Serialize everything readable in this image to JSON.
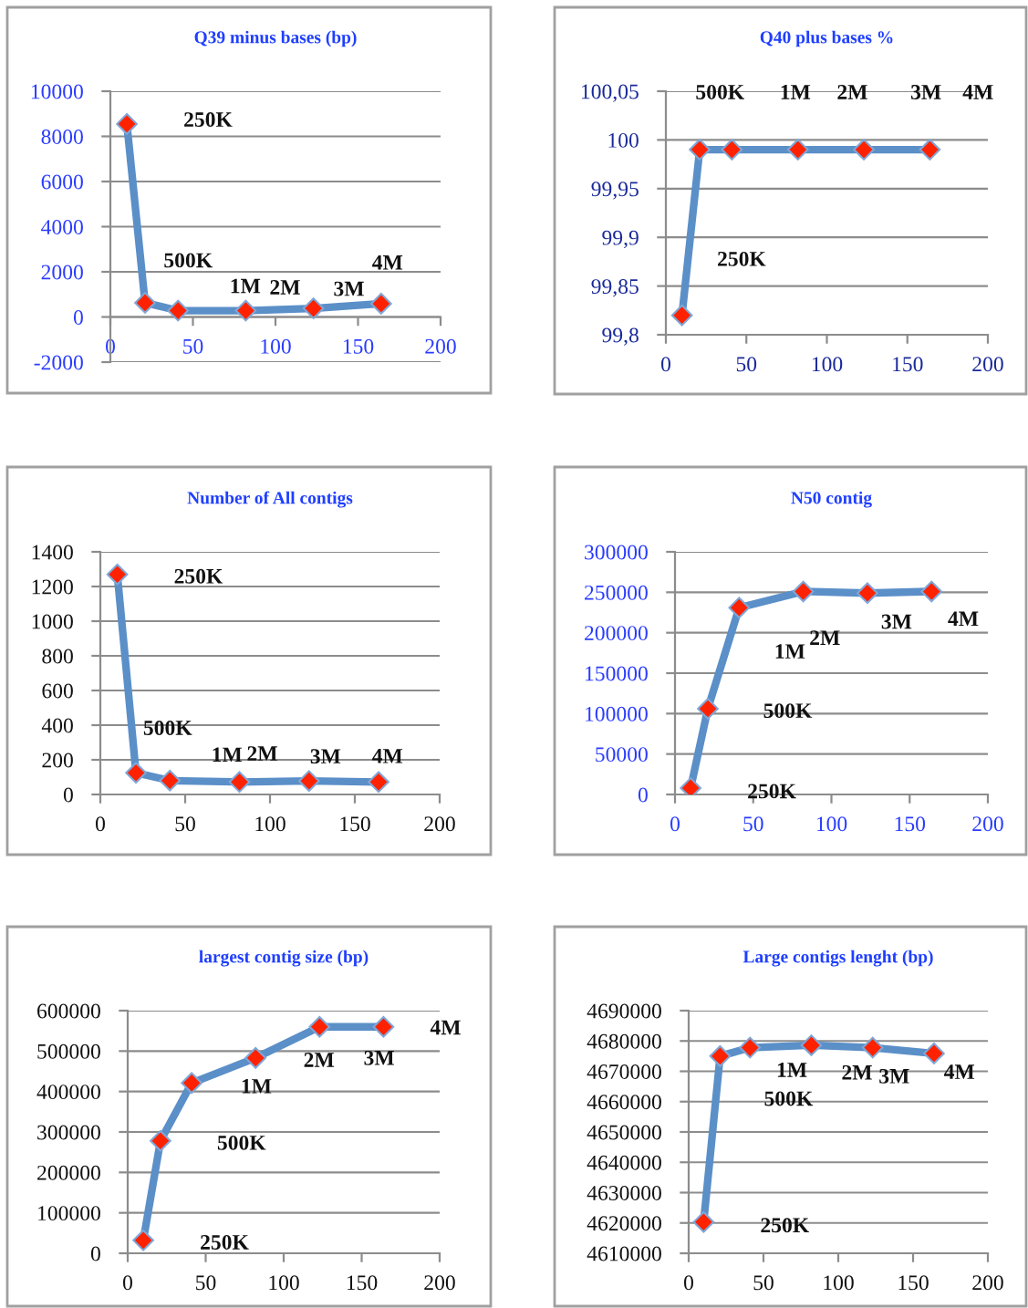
{
  "chart_data": [
    {
      "type": "line",
      "title": "Q39 minus bases (bp)",
      "x": [
        10,
        21,
        41,
        82,
        123,
        164
      ],
      "series": [
        {
          "color": "#5b8fc8",
          "values": [
            8550,
            630,
            280,
            280,
            380,
            590
          ]
        }
      ],
      "xlim": [
        0,
        200
      ],
      "xticks": [
        0,
        50,
        100,
        150,
        200
      ],
      "ylim": [
        -2000,
        10000
      ],
      "yticks": [
        -2000,
        0,
        2000,
        4000,
        6000,
        8000,
        10000
      ],
      "grid": "y",
      "marker": "diamond",
      "line_style": "solid",
      "annotations": [
        {
          "text": "250K",
          "x": 10,
          "y": 8550
        },
        {
          "text": "500K",
          "x": 21,
          "y": 630
        },
        {
          "text": "1M",
          "x": 41,
          "y": 280
        },
        {
          "text": "2M",
          "x": 82,
          "y": 280
        },
        {
          "text": "3M",
          "x": 123,
          "y": 380
        },
        {
          "text": "4M",
          "x": 164,
          "y": 590
        }
      ]
    },
    {
      "type": "line",
      "title": "Q40 plus bases %",
      "x": [
        10,
        21,
        41,
        82,
        123,
        164
      ],
      "series": [
        {
          "color": "#5b8fc8",
          "values": [
            99.82,
            99.99,
            99.99,
            99.99,
            99.99,
            99.99
          ]
        }
      ],
      "xlim": [
        0,
        200
      ],
      "xticks": [
        0,
        50,
        100,
        150,
        200
      ],
      "ylim": [
        99.8,
        100.05
      ],
      "yticks": [
        {
          "value": 99.8,
          "label": "99,8"
        },
        {
          "value": 99.85,
          "label": "99,85"
        },
        {
          "value": 99.9,
          "label": "99,9"
        },
        {
          "value": 99.95,
          "label": "99,95"
        },
        100,
        {
          "value": 100.05,
          "label": "100,05"
        }
      ],
      "grid": "y",
      "marker": "diamond",
      "line_style": "solid",
      "annotations": [
        "250K",
        "500K",
        "1M",
        "2M",
        "3M",
        "4M"
      ]
    },
    {
      "type": "line",
      "title": "Number of All contigs",
      "x": [
        10,
        21,
        41,
        82,
        123,
        164
      ],
      "series": [
        {
          "color": "#5b8fc8",
          "values": [
            1270,
            125,
            80,
            72,
            78,
            72
          ]
        }
      ],
      "xlim": [
        0,
        200
      ],
      "xticks": [
        0,
        50,
        100,
        150,
        200
      ],
      "ylim": [
        0,
        1400
      ],
      "yticks": [
        0,
        200,
        400,
        600,
        800,
        1000,
        1200,
        1400
      ],
      "grid": "y",
      "marker": "diamond",
      "line_style": "solid",
      "annotations": [
        {
          "text": "250K",
          "x": 10,
          "y": 1270
        },
        {
          "text": "500K",
          "x": 21,
          "y": 125
        },
        {
          "text": "1M",
          "x": 41,
          "y": 80
        },
        {
          "text": "2M",
          "x": 82,
          "y": 72
        },
        {
          "text": "3M",
          "x": 123,
          "y": 78
        },
        {
          "text": "4M",
          "x": 164,
          "y": 72
        }
      ]
    },
    {
      "type": "line",
      "title": "N50 contig",
      "x": [
        10,
        21,
        41,
        82,
        123,
        164
      ],
      "series": [
        {
          "color": "#5b8fc8",
          "values": [
            8000,
            106000,
            231000,
            251000,
            249000,
            251000
          ]
        }
      ],
      "xlim": [
        0,
        200
      ],
      "xticks": [
        0,
        50,
        100,
        150,
        200
      ],
      "ylim": [
        0,
        300000
      ],
      "yticks": [
        0,
        50000,
        100000,
        150000,
        200000,
        250000,
        300000
      ],
      "grid": "y",
      "marker": "diamond",
      "line_style": "solid",
      "annotations": [
        {
          "text": "250K",
          "x": 10,
          "y": 8000
        },
        {
          "text": "500K",
          "x": 21,
          "y": 106000
        },
        {
          "text": "1M",
          "x": 41,
          "y": 231000
        },
        {
          "text": "2M",
          "x": 82,
          "y": 251000
        },
        {
          "text": "3M",
          "x": 123,
          "y": 249000
        },
        {
          "text": "4M",
          "x": 164,
          "y": 251000
        }
      ]
    },
    {
      "type": "line",
      "title": "largest contig size (bp)",
      "x": [
        10,
        21,
        41,
        82,
        123,
        164
      ],
      "series": [
        {
          "color": "#5b8fc8",
          "values": [
            32000,
            278000,
            421000,
            483000,
            560000,
            560000
          ]
        }
      ],
      "xlim": [
        0,
        200
      ],
      "xticks": [
        0,
        50,
        100,
        150,
        200
      ],
      "ylim": [
        0,
        600000
      ],
      "yticks": [
        0,
        100000,
        200000,
        300000,
        400000,
        500000,
        600000
      ],
      "grid": "y",
      "marker": "diamond",
      "line_style": "solid",
      "annotations": [
        {
          "text": "250K",
          "x": 10,
          "y": 32000
        },
        {
          "text": "500K",
          "x": 21,
          "y": 278000
        },
        {
          "text": "1M",
          "x": 41,
          "y": 421000
        },
        {
          "text": "2M",
          "x": 82,
          "y": 483000
        },
        {
          "text": "3M",
          "x": 123,
          "y": 560000
        },
        {
          "text": "4M",
          "x": 164,
          "y": 560000
        }
      ]
    },
    {
      "type": "line",
      "title": "Large contigs lenght (bp)",
      "x": [
        10,
        21,
        41,
        82,
        123,
        164
      ],
      "series": [
        {
          "color": "#5b8fc8",
          "values": [
            4620300,
            4675000,
            4677800,
            4678600,
            4677800,
            4675900
          ]
        }
      ],
      "xlim": [
        0,
        200
      ],
      "xticks": [
        0,
        50,
        100,
        150,
        200
      ],
      "ylim": [
        4610000,
        4690000
      ],
      "yticks": [
        4610000,
        4620000,
        4630000,
        4640000,
        4650000,
        4660000,
        4670000,
        4680000,
        4690000
      ],
      "grid": "y",
      "marker": "diamond",
      "line_style": "solid",
      "annotations": [
        {
          "text": "250K",
          "x": 10,
          "y": 4620300
        },
        {
          "text": "500K",
          "x": 21,
          "y": 4675000
        },
        {
          "text": "1M",
          "x": 41,
          "y": 4677800
        },
        {
          "text": "2M",
          "x": 82,
          "y": 4678600
        },
        {
          "text": "3M",
          "x": 123,
          "y": 4677800
        },
        {
          "text": "4M",
          "x": 164,
          "y": 4675900
        }
      ]
    }
  ]
}
